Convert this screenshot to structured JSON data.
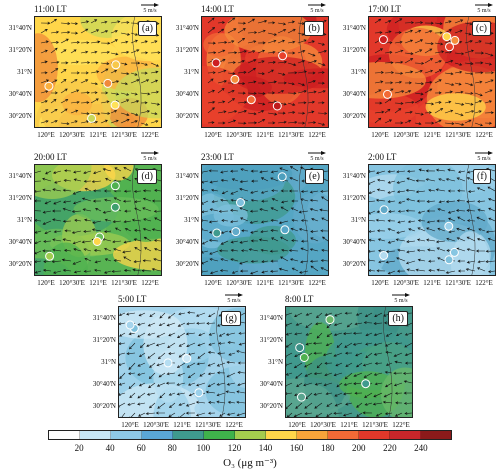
{
  "panels": [
    {
      "time": "11:00 LT",
      "label": "(a)",
      "ref": "5 m/s",
      "palette": [
        "#f7c84b",
        "#ffe25a",
        "#fbb040",
        "#c8d85a",
        "#f08a3a"
      ],
      "base": "#ffd64a"
    },
    {
      "time": "14:00 LT",
      "label": "(b)",
      "ref": "5 m/s",
      "palette": [
        "#e8412c",
        "#f26a36",
        "#cd1f22",
        "#f58e3c",
        "#bf1c1e"
      ],
      "base": "#e2382a"
    },
    {
      "time": "17:00 LT",
      "label": "(c)",
      "ref": "5 m/s",
      "palette": [
        "#e8412c",
        "#f26a36",
        "#cd1f22",
        "#f58e3c",
        "#ffd64a"
      ],
      "base": "#e2382a"
    },
    {
      "time": "20:00 LT",
      "label": "(d)",
      "ref": "5 m/s",
      "palette": [
        "#4fb14f",
        "#69bd5a",
        "#9fcc50",
        "#ffd64a",
        "#3d9f6e"
      ],
      "base": "#58b453"
    },
    {
      "time": "23:00 LT",
      "label": "(e)",
      "ref": "5 m/s",
      "palette": [
        "#4d9fbd",
        "#62aac9",
        "#3f9a8e",
        "#7ec0dc",
        "#57a7c8"
      ],
      "base": "#55a6c4"
    },
    {
      "time": "2:00 LT",
      "label": "(f)",
      "ref": "5 m/s",
      "palette": [
        "#7ec0dc",
        "#9bd0ea",
        "#62aac9",
        "#b3dbef",
        "#87c6e2"
      ],
      "base": "#86c4e0"
    },
    {
      "time": "5:00 LT",
      "label": "(g)",
      "ref": "5 m/s",
      "palette": [
        "#9bd0ea",
        "#b6def2",
        "#7ec0dc",
        "#cde8f6",
        "#a6d4ec"
      ],
      "base": "#a3d3eb"
    },
    {
      "time": "8:00 LT",
      "label": "(h)",
      "ref": "5 m/s",
      "palette": [
        "#3f9a8e",
        "#4fb14f",
        "#5aa58f",
        "#6ab96a",
        "#3b8f86"
      ],
      "base": "#45998a"
    }
  ],
  "axes": {
    "lat_labels": [
      "31°40'N",
      "31°20'N",
      "31°N",
      "30°40'N",
      "30°20'N"
    ],
    "lon_labels": [
      "120°E",
      "120°30'E",
      "121°E",
      "121°30'E",
      "122°E"
    ]
  },
  "colorbar": {
    "levels": [
      "20",
      "40",
      "60",
      "80",
      "100",
      "120",
      "140",
      "160",
      "180",
      "200",
      "220",
      "240"
    ],
    "colors": [
      "#ffffff",
      "#c6e6f6",
      "#8ec8e6",
      "#5aa7d6",
      "#3f9a8e",
      "#3fb24b",
      "#a4cc4e",
      "#ffd64a",
      "#f8a43a",
      "#f26a36",
      "#e2382a",
      "#c8262a",
      "#8c1a1a"
    ],
    "title": "O₃ (μg m⁻³)"
  }
}
